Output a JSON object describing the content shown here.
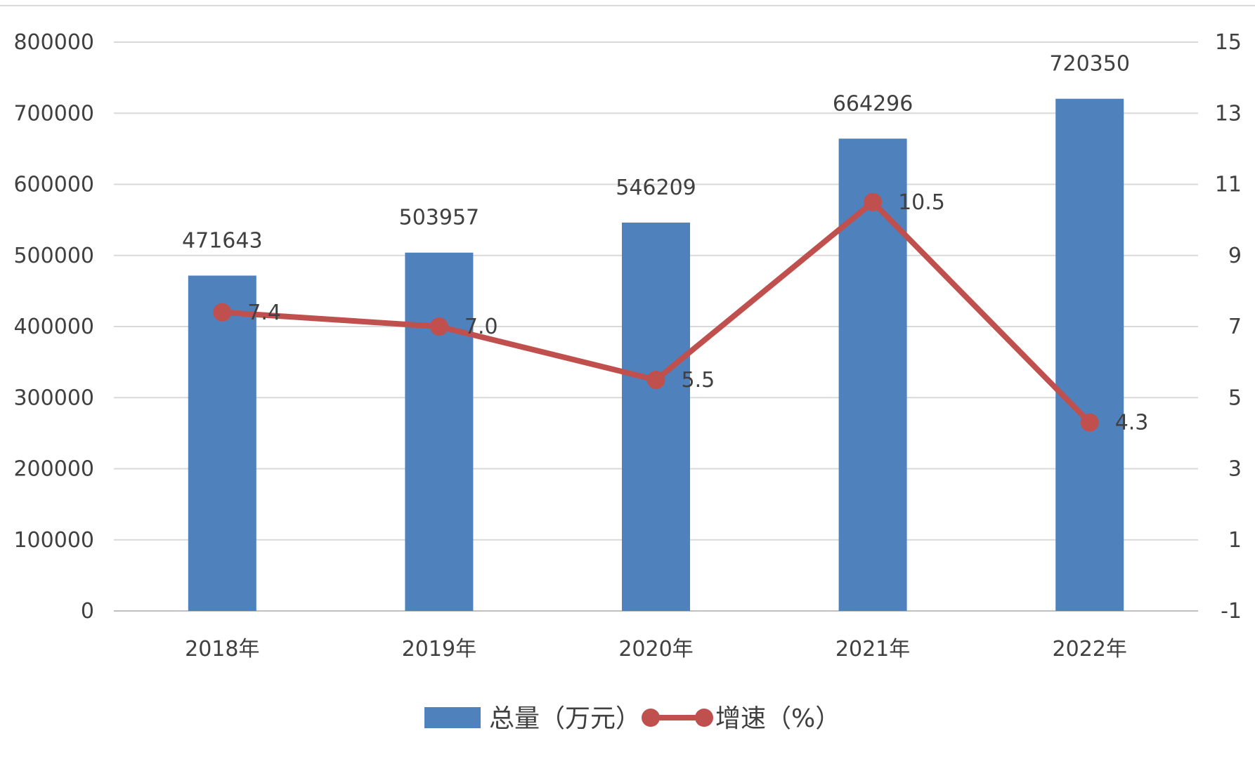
{
  "chart_data": {
    "type": "bar",
    "categories": [
      "2018年",
      "2019年",
      "2020年",
      "2021年",
      "2022年"
    ],
    "series": [
      {
        "name": "总量（万元）",
        "type": "bar",
        "axis": "left",
        "color": "#4f81bd",
        "values": [
          471643,
          503957,
          546209,
          664296,
          720350
        ],
        "labels": [
          "471643",
          "503957",
          "546209",
          "664296",
          "720350"
        ]
      },
      {
        "name": "增速（%）",
        "type": "line",
        "axis": "right",
        "color": "#c0504d",
        "values": [
          7.4,
          7.0,
          5.5,
          10.5,
          4.3
        ],
        "labels": [
          "7.4",
          "7.0",
          "5.5",
          "10.5",
          "4.3"
        ]
      }
    ],
    "ylim": [
      0,
      800000
    ],
    "y_ticks": [
      "0",
      "100000",
      "200000",
      "300000",
      "400000",
      "500000",
      "600000",
      "700000",
      "800000"
    ],
    "y2lim": [
      -1,
      15
    ],
    "y2_ticks": [
      "-1",
      "1",
      "3",
      "5",
      "7",
      "9",
      "11",
      "13",
      "15"
    ],
    "grid": true,
    "legend": "bottom",
    "title": "",
    "xlabel": "",
    "ylabel": ""
  }
}
